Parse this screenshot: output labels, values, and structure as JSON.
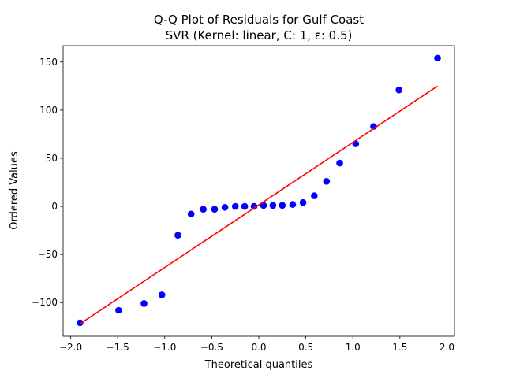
{
  "chart_data": {
    "type": "scatter",
    "title_line1": "Q-Q Plot of Residuals for Gulf Coast",
    "title_line2": "SVR (Kernel: linear, C: 1, ε: 0.5)",
    "xlabel": "Theoretical quantiles",
    "ylabel": "Ordered Values",
    "xlim": [
      -2.08,
      2.08
    ],
    "ylim": [
      -135,
      167
    ],
    "xticks": [
      -2.0,
      -1.5,
      -1.0,
      -0.5,
      0.0,
      0.5,
      1.0,
      1.5,
      2.0
    ],
    "xtick_labels": [
      "−2.0",
      "−1.5",
      "−1.0",
      "−0.5",
      "0.0",
      "0.5",
      "1.0",
      "1.5",
      "2.0"
    ],
    "yticks": [
      -100,
      -50,
      0,
      50,
      100,
      150
    ],
    "ytick_labels": [
      "−100",
      "−50",
      "0",
      "50",
      "100",
      "150"
    ],
    "grid": false,
    "marker_color": "#0000ff",
    "line_color": "#ff0000",
    "points": [
      {
        "x": -1.9,
        "y": -121
      },
      {
        "x": -1.49,
        "y": -108
      },
      {
        "x": -1.22,
        "y": -101
      },
      {
        "x": -1.03,
        "y": -92
      },
      {
        "x": -0.86,
        "y": -30
      },
      {
        "x": -0.72,
        "y": -8
      },
      {
        "x": -0.59,
        "y": -3
      },
      {
        "x": -0.47,
        "y": -3
      },
      {
        "x": -0.36,
        "y": -1
      },
      {
        "x": -0.25,
        "y": 0
      },
      {
        "x": -0.15,
        "y": 0
      },
      {
        "x": -0.05,
        "y": 0
      },
      {
        "x": 0.05,
        "y": 1
      },
      {
        "x": 0.15,
        "y": 1
      },
      {
        "x": 0.25,
        "y": 1
      },
      {
        "x": 0.36,
        "y": 2
      },
      {
        "x": 0.47,
        "y": 4
      },
      {
        "x": 0.59,
        "y": 11
      },
      {
        "x": 0.72,
        "y": 26
      },
      {
        "x": 0.86,
        "y": 45
      },
      {
        "x": 1.03,
        "y": 65
      },
      {
        "x": 1.22,
        "y": 83
      },
      {
        "x": 1.49,
        "y": 121
      },
      {
        "x": 1.9,
        "y": 154
      }
    ],
    "fit_line": {
      "x": [
        -1.9,
        1.9
      ],
      "y": [
        -122,
        125
      ]
    }
  }
}
